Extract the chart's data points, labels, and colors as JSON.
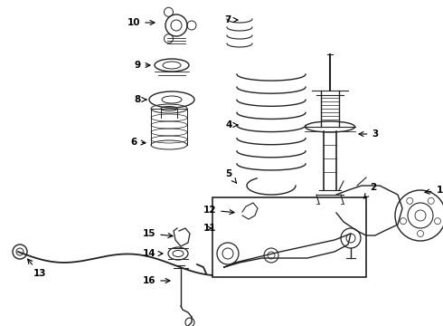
{
  "bg_color": "#ffffff",
  "line_color": "#222222",
  "label_color": "#000000",
  "figsize": [
    4.9,
    3.6
  ],
  "dpi": 100
}
